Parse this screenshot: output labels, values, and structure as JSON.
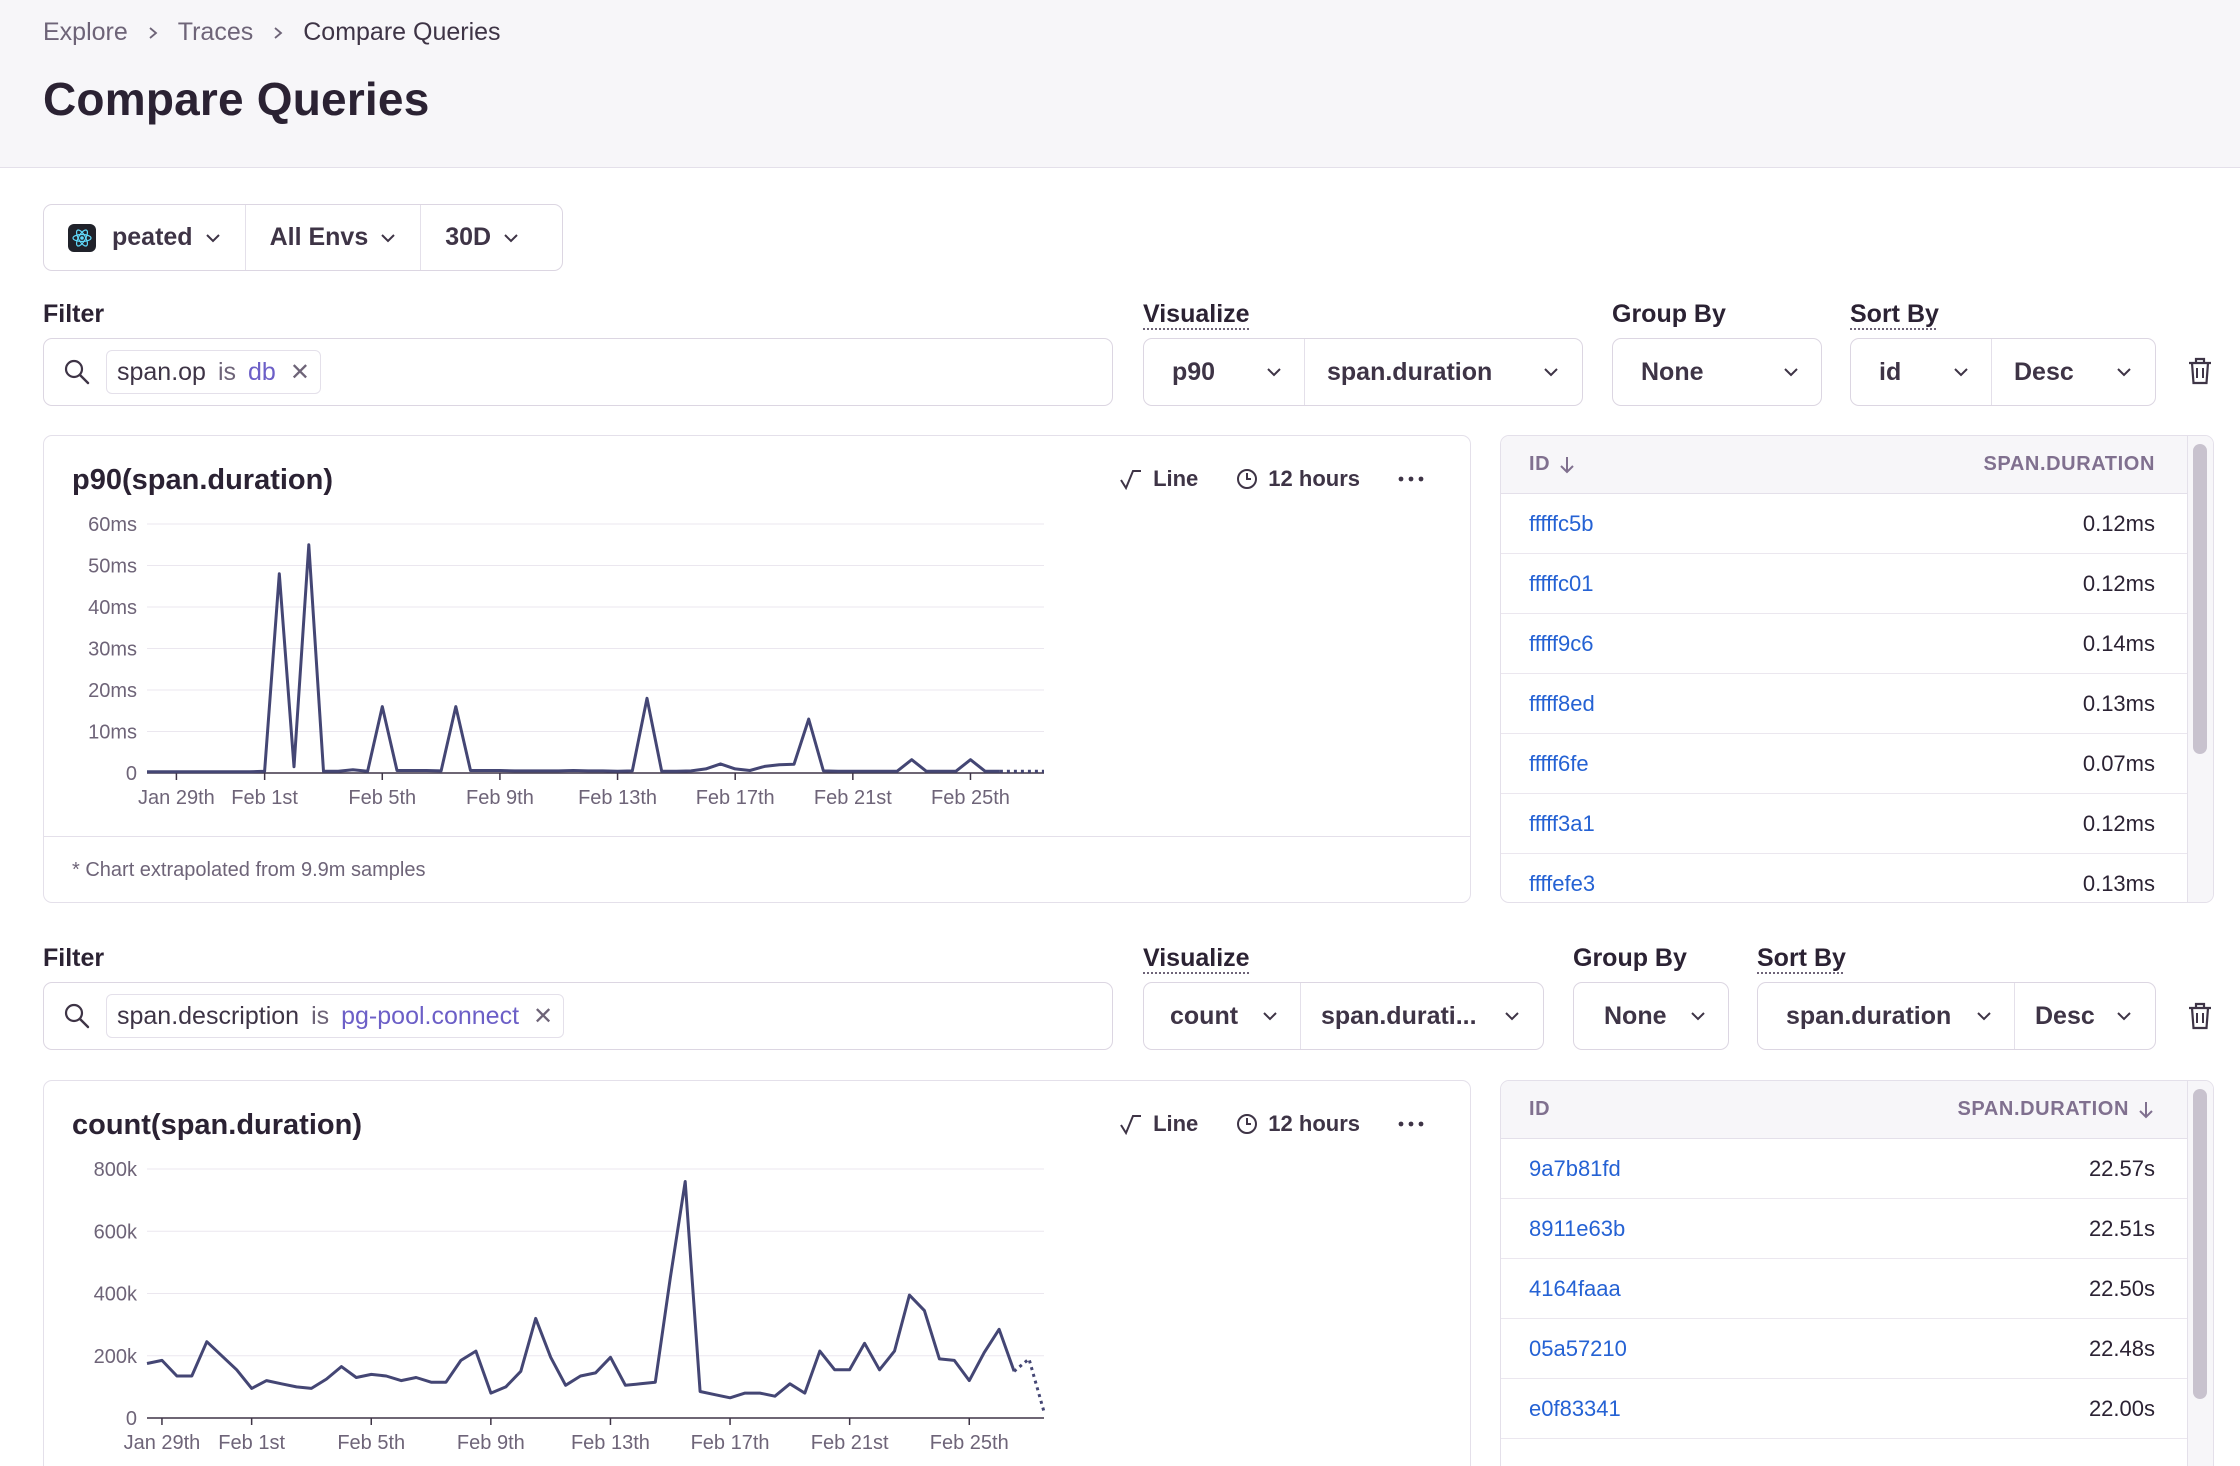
{
  "breadcrumb": {
    "items": [
      "Explore",
      "Traces",
      "Compare Queries"
    ]
  },
  "page_title": "Compare Queries",
  "page_filters": {
    "project": "peated",
    "environment": "All Envs",
    "period": "30D"
  },
  "queries": [
    {
      "labels": {
        "filter": "Filter",
        "visualize": "Visualize",
        "group_by": "Group By",
        "sort_by": "Sort By"
      },
      "filter_token": {
        "key": "span.op",
        "operator": "is",
        "value": "db"
      },
      "visualize": {
        "aggregate": "p90",
        "field": "span.duration"
      },
      "group_by": "None",
      "sort_by": {
        "field": "id",
        "order": "Desc"
      },
      "chart": {
        "title": "p90(span.duration)",
        "type_label": "Line",
        "interval_label": "12 hours",
        "footnote": "* Chart extrapolated from 9.9m samples"
      },
      "table": {
        "columns": [
          "ID",
          "SPAN.DURATION"
        ],
        "sort_column": 0,
        "rows": [
          {
            "id": "fffffc5b",
            "duration": "0.12ms"
          },
          {
            "id": "fffffc01",
            "duration": "0.12ms"
          },
          {
            "id": "fffff9c6",
            "duration": "0.14ms"
          },
          {
            "id": "fffff8ed",
            "duration": "0.13ms"
          },
          {
            "id": "fffff6fe",
            "duration": "0.07ms"
          },
          {
            "id": "fffff3a1",
            "duration": "0.12ms"
          },
          {
            "id": "ffffefe3",
            "duration": "0.13ms"
          }
        ]
      }
    },
    {
      "labels": {
        "filter": "Filter",
        "visualize": "Visualize",
        "group_by": "Group By",
        "sort_by": "Sort By"
      },
      "filter_token": {
        "key": "span.description",
        "operator": "is",
        "value": "pg-pool.connect"
      },
      "visualize": {
        "aggregate": "count",
        "field": "span.durati..."
      },
      "group_by": "None",
      "sort_by": {
        "field": "span.duration",
        "order": "Desc"
      },
      "chart": {
        "title": "count(span.duration)",
        "type_label": "Line",
        "interval_label": "12 hours",
        "footnote": ""
      },
      "table": {
        "columns": [
          "ID",
          "SPAN.DURATION"
        ],
        "sort_column": 1,
        "rows": [
          {
            "id": "9a7b81fd",
            "duration": "22.57s"
          },
          {
            "id": "8911e63b",
            "duration": "22.51s"
          },
          {
            "id": "4164faaa",
            "duration": "22.50s"
          },
          {
            "id": "05a57210",
            "duration": "22.48s"
          },
          {
            "id": "e0f83341",
            "duration": "22.00s"
          }
        ]
      }
    }
  ],
  "chart_data": [
    {
      "type": "line",
      "title": "p90(span.duration)",
      "xlabel": "",
      "ylabel": "",
      "ylim": [
        0,
        60
      ],
      "y_unit": "ms",
      "yticks": [
        0,
        10,
        20,
        30,
        40,
        50,
        60
      ],
      "ytick_labels": [
        "0",
        "10ms",
        "20ms",
        "30ms",
        "40ms",
        "50ms",
        "60ms"
      ],
      "x_start": "Jan 28th",
      "x_step_days": 0.5,
      "xtick_indices": [
        2,
        8,
        16,
        24,
        32,
        40,
        48,
        56
      ],
      "xtick_labels": [
        "Jan 29th",
        "Feb 1st",
        "Feb 5th",
        "Feb 9th",
        "Feb 13th",
        "Feb 17th",
        "Feb 21st",
        "Feb 25th"
      ],
      "partial_from_index": 58,
      "series": [
        {
          "name": "p90(span.duration)",
          "values": [
            0.3,
            0.3,
            0.3,
            0.3,
            0.3,
            0.3,
            0.3,
            0.3,
            0.4,
            48,
            1.5,
            55,
            0.4,
            0.4,
            0.8,
            0.4,
            16,
            0.6,
            0.6,
            0.6,
            0.5,
            16,
            0.6,
            0.6,
            0.6,
            0.5,
            0.5,
            0.5,
            0.5,
            0.6,
            0.5,
            0.5,
            0.4,
            0.5,
            18,
            0.4,
            0.4,
            0.5,
            1,
            2.2,
            1,
            0.6,
            1.6,
            2,
            2.1,
            13,
            0.5,
            0.4,
            0.4,
            0.4,
            0.4,
            0.4,
            3.2,
            0.4,
            0.4,
            0.4,
            3.2,
            0.4,
            0.4,
            0.4,
            0.4,
            0.4
          ]
        }
      ]
    },
    {
      "type": "line",
      "title": "count(span.duration)",
      "xlabel": "",
      "ylabel": "",
      "ylim": [
        0,
        800000
      ],
      "yticks": [
        0,
        200000,
        400000,
        600000,
        800000
      ],
      "ytick_labels": [
        "0",
        "200k",
        "400k",
        "600k",
        "800k"
      ],
      "x_start": "Jan 28th",
      "x_step_days": 0.5,
      "xtick_indices": [
        1,
        7,
        15,
        23,
        31,
        39,
        47,
        55
      ],
      "xtick_labels": [
        "Jan 29th",
        "Feb 1st",
        "Feb 5th",
        "Feb 9th",
        "Feb 13th",
        "Feb 17th",
        "Feb 21st",
        "Feb 25th"
      ],
      "partial_from_index": 58,
      "series": [
        {
          "name": "count(span.duration)",
          "values": [
            175000,
            185000,
            135000,
            135000,
            245000,
            200000,
            155000,
            95000,
            120000,
            110000,
            100000,
            95000,
            125000,
            165000,
            130000,
            140000,
            135000,
            120000,
            130000,
            115000,
            115000,
            185000,
            215000,
            80000,
            100000,
            150000,
            320000,
            195000,
            105000,
            135000,
            145000,
            195000,
            105000,
            110000,
            115000,
            450000,
            760000,
            85000,
            75000,
            65000,
            80000,
            80000,
            70000,
            110000,
            80000,
            215000,
            155000,
            155000,
            240000,
            155000,
            215000,
            395000,
            345000,
            190000,
            185000,
            120000,
            210000,
            285000,
            150000,
            190000,
            20000
          ]
        }
      ]
    }
  ]
}
